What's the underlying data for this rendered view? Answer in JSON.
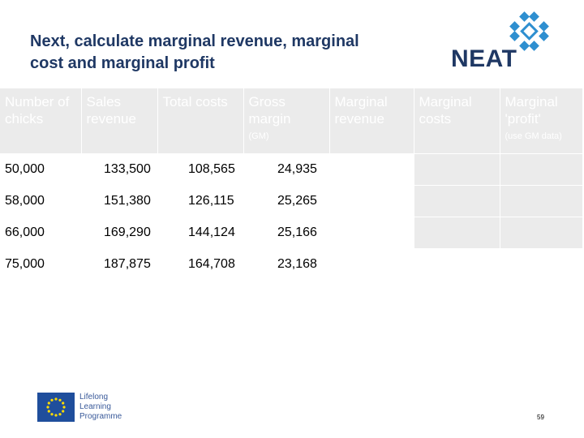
{
  "slide": {
    "title": "Next, calculate marginal revenue, marginal cost and marginal profit",
    "page_number": "59"
  },
  "logo": {
    "text": "NEAT",
    "color": "#1f3864",
    "icon_color": "#2e8fd0"
  },
  "footer": {
    "program_lines": [
      "Lifelong",
      "Learning",
      "Programme"
    ]
  },
  "table": {
    "headers": [
      {
        "label": "Number of chicks",
        "sub": ""
      },
      {
        "label": "Sales revenue",
        "sub": ""
      },
      {
        "label": "Total costs",
        "sub": ""
      },
      {
        "label": "Gross margin",
        "sub": "(GM)"
      },
      {
        "label": "Marginal revenue",
        "sub": ""
      },
      {
        "label": "Marginal costs",
        "sub": ""
      },
      {
        "label": "Marginal 'profit'",
        "sub": "(use GM data)"
      }
    ],
    "rows": [
      [
        "50,000",
        "133,500",
        "108,565",
        "24,935",
        "",
        "",
        ""
      ],
      [
        "58,000",
        "151,380",
        "126,115",
        "25,265",
        "",
        "",
        ""
      ],
      [
        "66,000",
        "169,290",
        "144,124",
        "25,166",
        "",
        "",
        ""
      ],
      [
        "75,000",
        "187,875",
        "164,708",
        "23,168",
        "",
        "",
        ""
      ]
    ]
  }
}
